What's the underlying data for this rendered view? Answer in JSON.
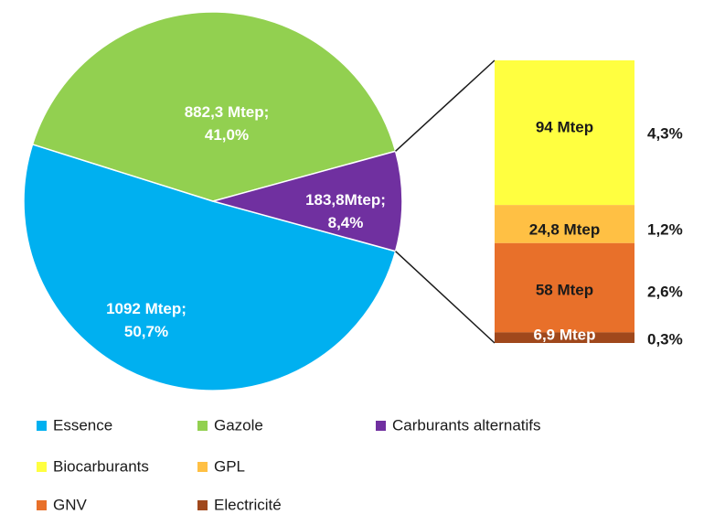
{
  "chart_data": {
    "type": "pie",
    "slices": [
      {
        "name": "Essence",
        "value": 1092,
        "label_line1": "1092 Mtep;",
        "label_line2": "50,7%",
        "color": "#00b0f0"
      },
      {
        "name": "Gazole",
        "value": 882.3,
        "label_line1": "882,3 Mtep;",
        "label_line2": "41,0%",
        "color": "#92d050"
      },
      {
        "name": "Carburants alternatifs",
        "value": 183.8,
        "label_line1": "183,8Mtep;",
        "label_line2": "8,4%",
        "color": "#7030a0"
      }
    ],
    "breakdown_of": "Carburants alternatifs",
    "breakdown": [
      {
        "name": "Biocarburants",
        "value": 94,
        "label": "94 Mtep",
        "percent": "4,3%",
        "color": "#ffff40"
      },
      {
        "name": "GPL",
        "value": 24.8,
        "label": "24,8 Mtep",
        "percent": "1,2%",
        "color": "#ffc044"
      },
      {
        "name": "GNV",
        "value": 58,
        "label": "58 Mtep",
        "percent": "2,6%",
        "color": "#e8702a"
      },
      {
        "name": "Electricité",
        "value": 6.9,
        "label": "6,9 Mtep",
        "percent": "0,3%",
        "color": "#a0481c"
      }
    ],
    "legend": [
      {
        "name": "Essence",
        "color": "#00b0f0"
      },
      {
        "name": "Gazole",
        "color": "#92d050"
      },
      {
        "name": "Carburants alternatifs",
        "color": "#7030a0"
      },
      {
        "name": "Biocarburants",
        "color": "#ffff40"
      },
      {
        "name": "GPL",
        "color": "#ffc044"
      },
      {
        "name": "GNV",
        "color": "#e8702a"
      },
      {
        "name": "Electricité",
        "color": "#a0481c"
      }
    ],
    "legend_position": "bottom"
  }
}
